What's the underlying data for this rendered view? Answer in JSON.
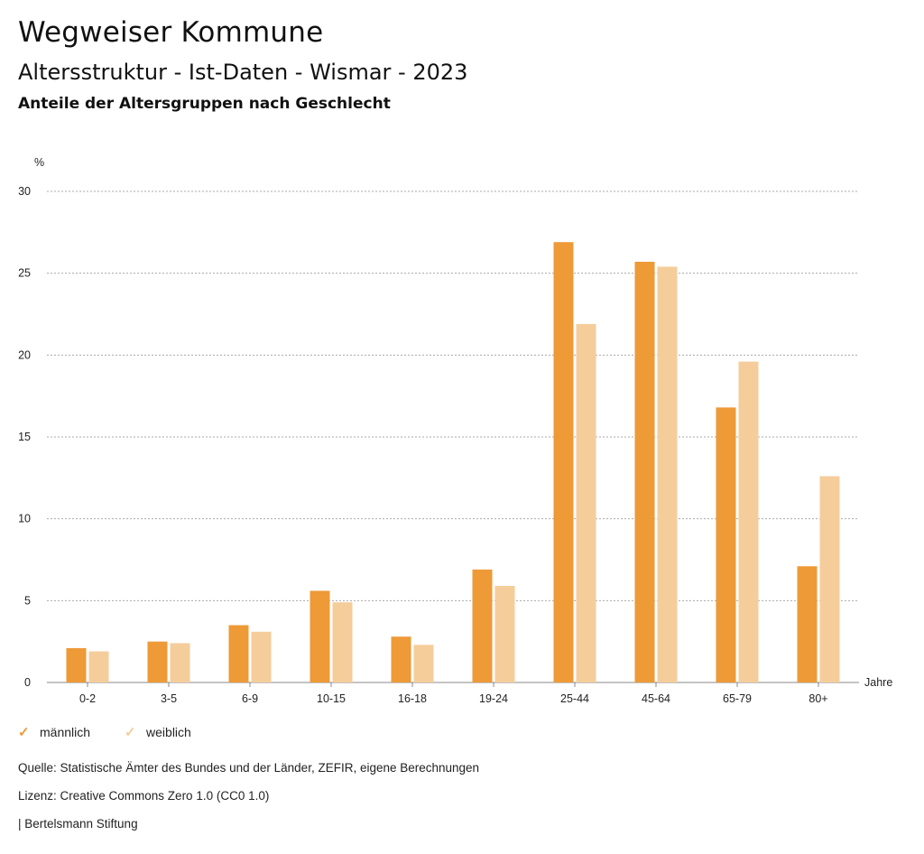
{
  "header": {
    "title": "Wegweiser Kommune",
    "subtitle": "Altersstruktur - Ist-Daten - Wismar - 2023",
    "subsubtitle": "Anteile der Altersgruppen nach Geschlecht"
  },
  "chart_data": {
    "type": "bar",
    "ylabel": "%",
    "xlabel": "Jahre",
    "ylim": [
      0,
      30
    ],
    "yticks": [
      0,
      5,
      10,
      15,
      20,
      25,
      30
    ],
    "grid": true,
    "categories": [
      "0-2",
      "3-5",
      "6-9",
      "10-15",
      "16-18",
      "19-24",
      "25-44",
      "45-64",
      "65-79",
      "80+"
    ],
    "series": [
      {
        "name": "männlich",
        "color": "#ed9a37",
        "values": [
          2.1,
          2.5,
          3.5,
          5.6,
          2.8,
          6.9,
          26.9,
          25.7,
          16.8,
          7.1
        ]
      },
      {
        "name": "weiblich",
        "color": "#f5cd9b",
        "values": [
          1.9,
          2.4,
          3.1,
          4.9,
          2.3,
          5.9,
          21.9,
          25.4,
          19.6,
          12.6
        ]
      }
    ]
  },
  "legend": {
    "items": [
      {
        "label": "männlich",
        "icon": "check-icon",
        "color": "#ed9a37"
      },
      {
        "label": "weiblich",
        "icon": "check-icon",
        "color": "#f5cd9b"
      }
    ]
  },
  "footer": {
    "source": "Quelle: Statistische Ämter des Bundes und der Länder, ZEFIR, eigene Berechnungen",
    "license": "Lizenz: Creative Commons Zero 1.0 (CC0 1.0)",
    "publisher": "| Bertelsmann Stiftung"
  }
}
